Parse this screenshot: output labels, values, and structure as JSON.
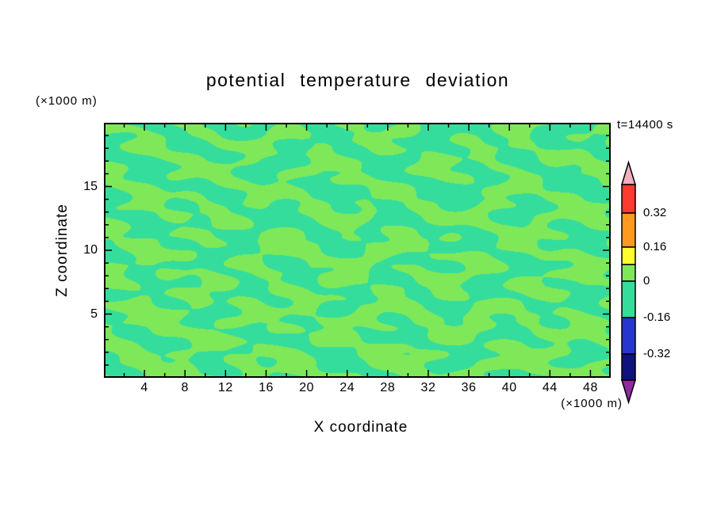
{
  "title": "potential temperature deviation",
  "time_label": "t=14400 s",
  "axes": {
    "x_label": "X coordinate",
    "x_unit_label": "(×1000 m)",
    "z_label": "Z coordinate",
    "z_unit_label": "(×1000 m)",
    "x_ticks": [
      4,
      8,
      12,
      16,
      20,
      24,
      28,
      32,
      36,
      40,
      44,
      48
    ],
    "z_ticks": [
      5,
      10,
      15
    ],
    "x_range": [
      0,
      50
    ],
    "z_range": [
      0,
      20
    ]
  },
  "colorbar": {
    "tick_labels": [
      "0.32",
      "0.16",
      "0",
      "-0.16",
      "-0.32"
    ],
    "band_names": [
      "red",
      "orange",
      "yellow",
      "yellow-green",
      "spring-green",
      "blue",
      "navy"
    ],
    "band_colors": [
      "#FF3A2E",
      "#FF9A1E",
      "#FFFF2E",
      "#7FE859",
      "#35DD9C",
      "#2736CF",
      "#10127E"
    ],
    "overflow_top_color": "#F2AFBC",
    "overflow_bottom_color": "#8F2B9E"
  },
  "plot": {
    "fill_above_zero": "#7FE859",
    "fill_below_zero": "#35DD9C",
    "frame_color": "#000000"
  },
  "chart_data": {
    "type": "heatmap",
    "title": "potential temperature deviation",
    "xlabel": "X coordinate (×1000 m)",
    "ylabel": "Z coordinate (×1000 m)",
    "x_range": [
      0,
      50
    ],
    "z_range": [
      0,
      20
    ],
    "x_tick_labels": [
      4,
      8,
      12,
      16,
      20,
      24,
      28,
      32,
      36,
      40,
      44,
      48
    ],
    "z_tick_labels": [
      5,
      10,
      15
    ],
    "time_label": "t=14400 s",
    "contour_levels": [
      -0.32,
      -0.16,
      0,
      0.16,
      0.32
    ],
    "colorbar_band_colors_top_to_bottom": [
      "#FF3A2E",
      "#FF9A1E",
      "#FFFF2E",
      "#7FE859",
      "#35DD9C",
      "#2736CF",
      "#10127E"
    ],
    "value_summary": "Potential temperature deviation stays within roughly -0.16 to +0.16 K over the whole domain; the fill alternates in a fine speckled/streaky pattern between the 0 to +0.16 band (yellow-green) and the -0.16 to 0 band (spring green), with slightly more negative speckle aloft and wavy horizontal streaks near the surface.",
    "legend_position": "right colorbar with overflow arrows"
  }
}
